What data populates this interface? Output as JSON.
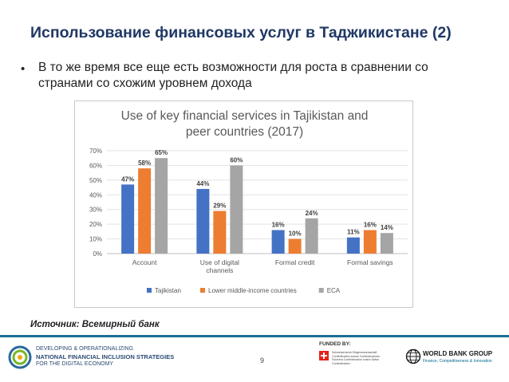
{
  "slide": {
    "title": "Использование финансовых услуг в Таджикистане (2)",
    "bullet_marker": "•",
    "bullet_text": "В то же время все еще есть возможности для роста в сравнении со странами со схожим уровнем дохода",
    "source": "Источник: Всемирный банк",
    "page_number": "9"
  },
  "footer": {
    "line1": "DEVELOPING & OPERATIONALIZING",
    "line2": "NATIONAL FINANCIAL INCLUSION STRATEGIES",
    "line3": "FOR THE DIGITAL ECONOMY",
    "funded_by": "FUNDED BY:",
    "swiss_text": "Schweizerische Eidgenossenschaft Confédération suisse Confederazione Svizzera Confederaziun svizra Swiss Confederation",
    "world_bank_name": "WORLD BANK GROUP",
    "world_bank_sub": "Finance, Competitiveness & Innovation"
  },
  "colors": {
    "title": "#1f3864",
    "divider": "#1b6f96",
    "tajikistan": "#4472c4",
    "lmic": "#ed7d31",
    "eca": "#a5a5a5"
  },
  "chart_data": {
    "type": "bar",
    "title": "Use of key financial services in Tajikistan and peer countries (2017)",
    "categories": [
      "Account",
      "Use of digital channels",
      "Formal credit",
      "Formal savings"
    ],
    "series": [
      {
        "name": "Tajikistan",
        "values": [
          47,
          44,
          16,
          11
        ],
        "color": "#4472c4"
      },
      {
        "name": "Lower middle-income countries",
        "values": [
          58,
          29,
          10,
          16
        ],
        "color": "#ed7d31"
      },
      {
        "name": "ECA",
        "values": [
          65,
          60,
          24,
          14
        ],
        "color": "#a5a5a5"
      }
    ],
    "ylim": [
      0,
      70
    ],
    "yticks": [
      0,
      10,
      20,
      30,
      40,
      50,
      60,
      70
    ],
    "ytick_labels": [
      "0%",
      "10%",
      "20%",
      "30%",
      "40%",
      "50%",
      "60%",
      "70%"
    ],
    "value_suffix": "%",
    "grid": true,
    "legend_position": "bottom",
    "xlabel": "",
    "ylabel": ""
  }
}
